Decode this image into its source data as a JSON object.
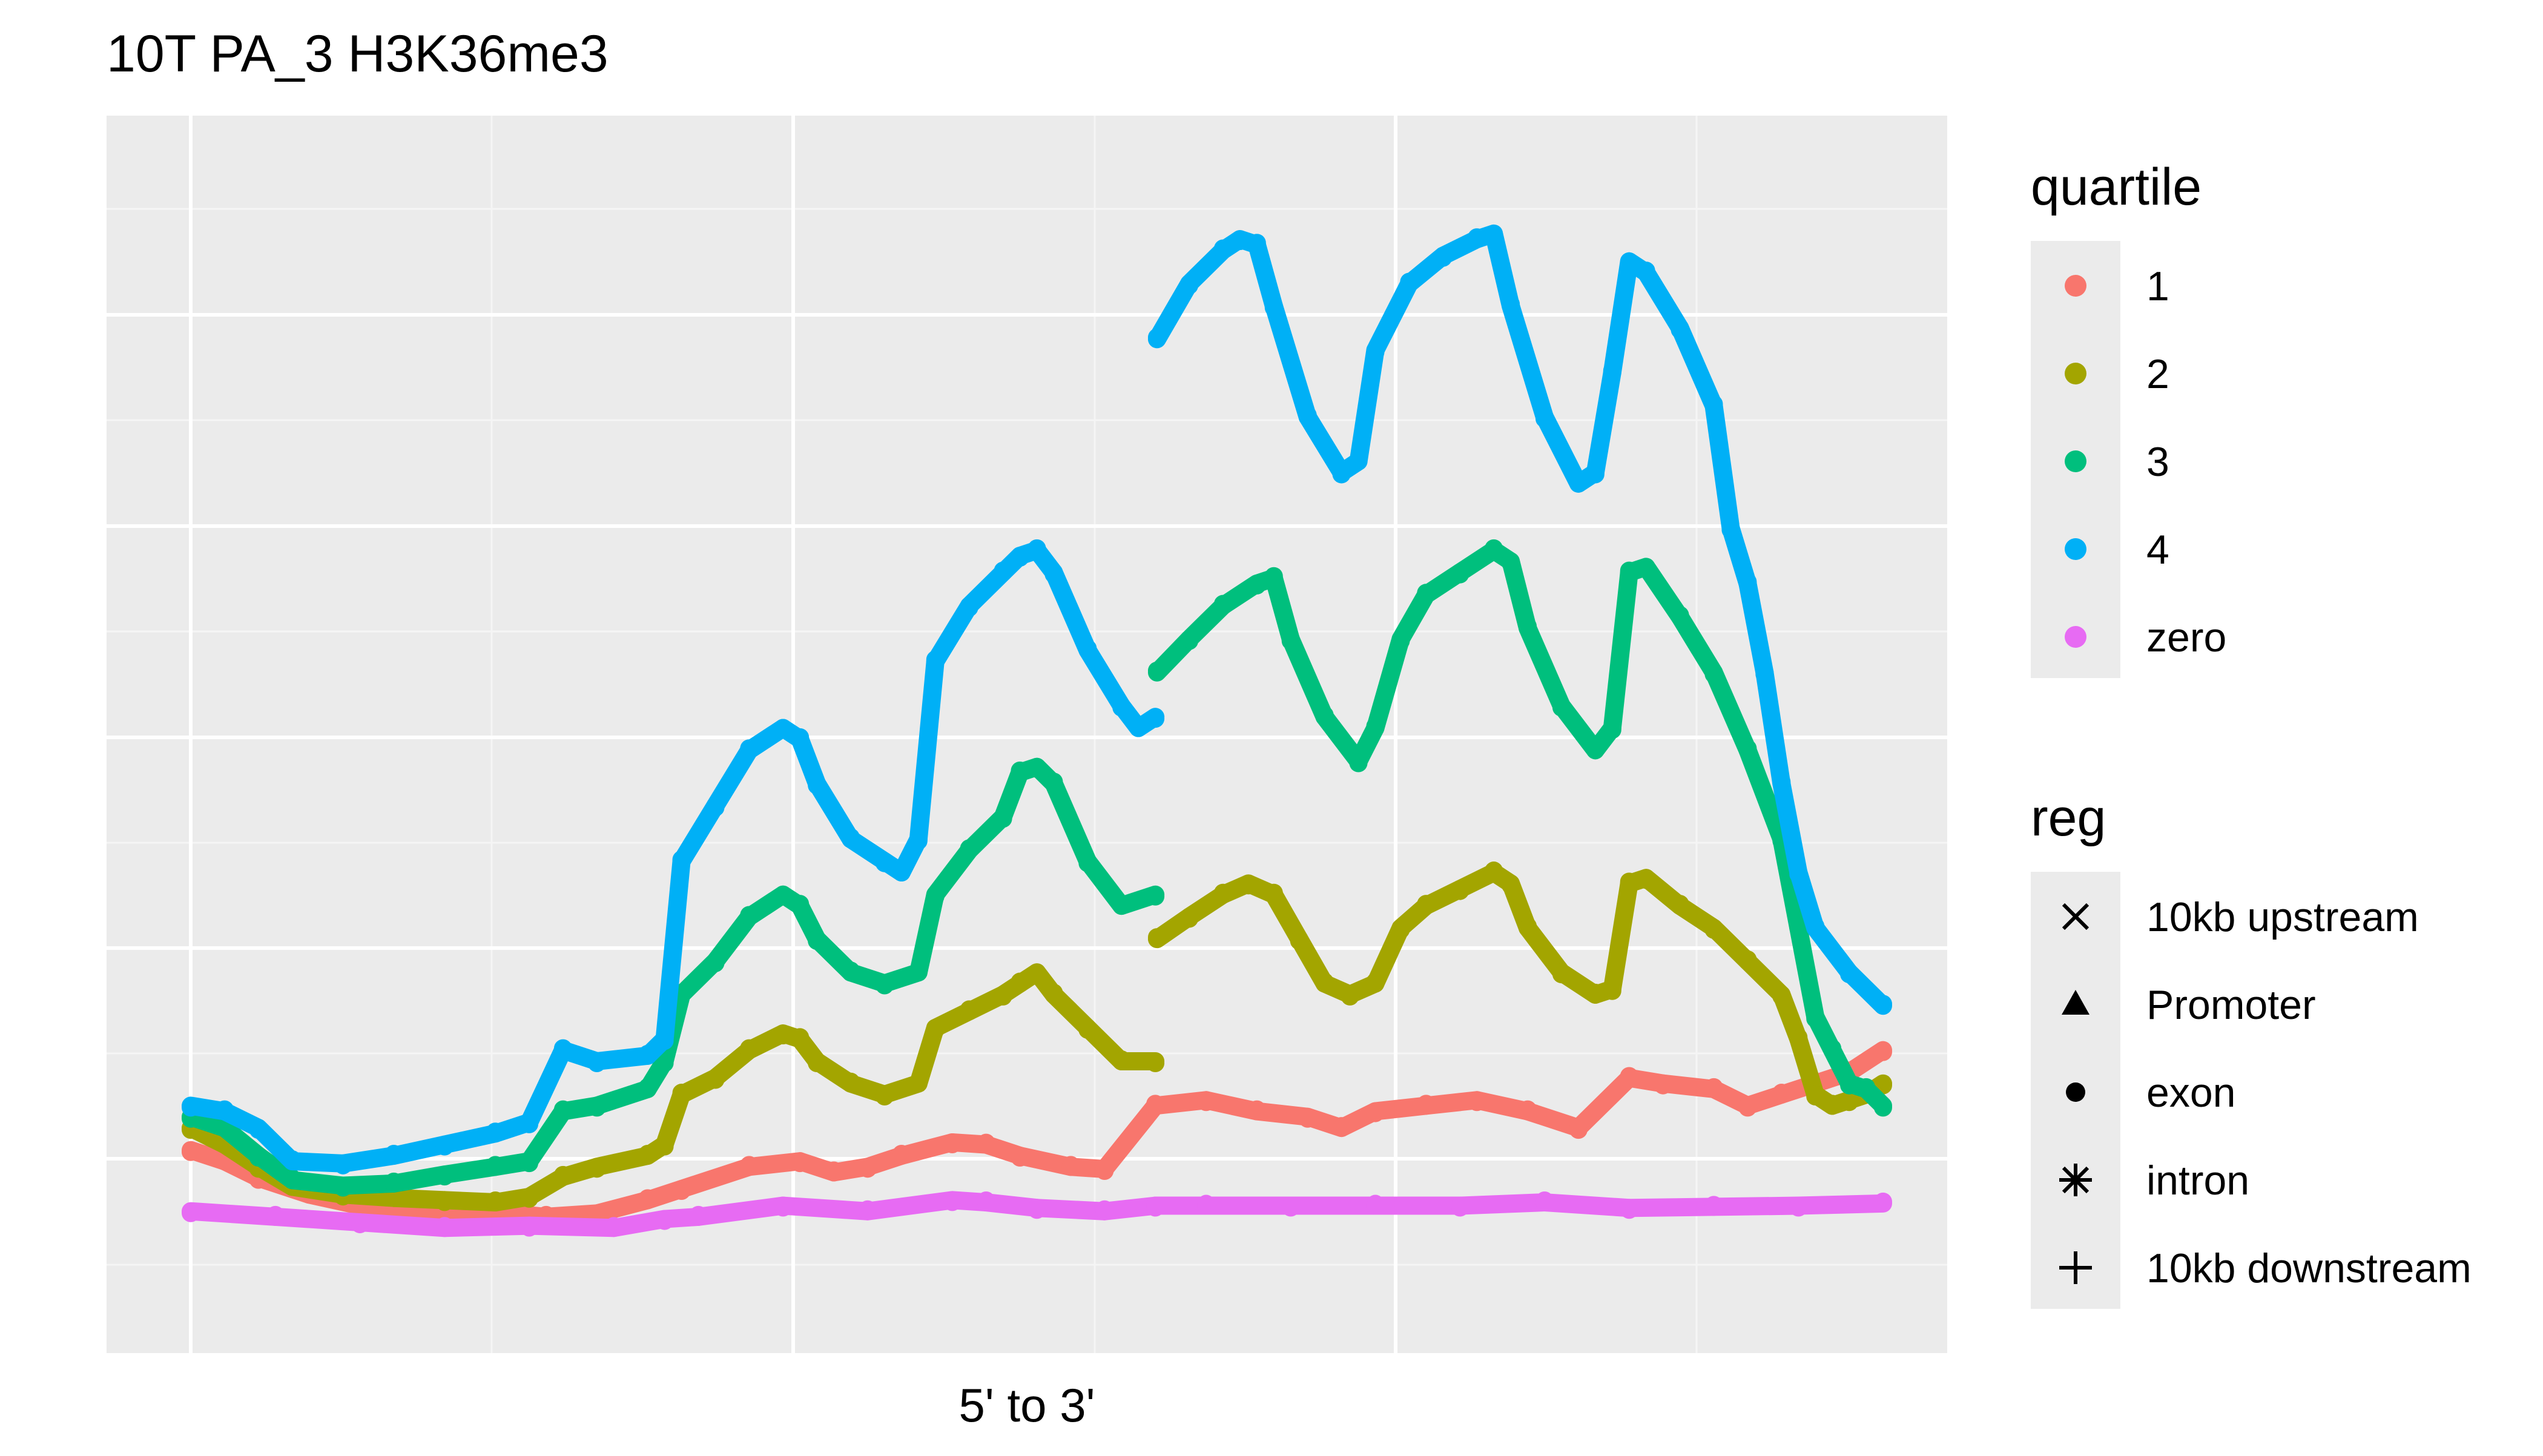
{
  "chart_data": {
    "type": "scatter",
    "title": "10T PA_3 H3K36me3",
    "xlabel": "5' to 3'",
    "ylabel": "",
    "xlim": [
      0,
      100
    ],
    "ylim": [
      0,
      100
    ],
    "grid": true,
    "legend_placement": "right",
    "legends": [
      {
        "title": "quartile",
        "entries": [
          {
            "label": "1",
            "color": "#F8766D"
          },
          {
            "label": "2",
            "color": "#A3A500"
          },
          {
            "label": "3",
            "color": "#00BF7D"
          },
          {
            "label": "4",
            "color": "#00B0F6"
          },
          {
            "label": "zero",
            "color": "#E76BF3"
          }
        ]
      },
      {
        "title": "reg",
        "entries": [
          {
            "label": "10kb upstream",
            "shape": "x"
          },
          {
            "label": "Promoter",
            "shape": "triangle"
          },
          {
            "label": "exon",
            "shape": "circle"
          },
          {
            "label": "intron",
            "shape": "asterisk"
          },
          {
            "label": "10kb downstream",
            "shape": "plus"
          }
        ]
      }
    ],
    "series": [
      {
        "name": "1",
        "color": "#F8766D",
        "points": [
          [
            0,
            12
          ],
          [
            2,
            11
          ],
          [
            4,
            9.5
          ],
          [
            7,
            8
          ],
          [
            10,
            7
          ],
          [
            14,
            6.6
          ],
          [
            18,
            6.4
          ],
          [
            21,
            6
          ],
          [
            24,
            6.3
          ],
          [
            27,
            7.5
          ],
          [
            29,
            8.5
          ],
          [
            33,
            10.5
          ],
          [
            36,
            11
          ],
          [
            38,
            10
          ],
          [
            40,
            10.5
          ],
          [
            42,
            11.5
          ],
          [
            45,
            12.7
          ],
          [
            47,
            12.5
          ],
          [
            49,
            11.5
          ],
          [
            52,
            10.5
          ],
          [
            54,
            10.3
          ],
          [
            57,
            16
          ],
          [
            60,
            16.5
          ],
          [
            63,
            15.5
          ],
          [
            66,
            15
          ],
          [
            68,
            14
          ],
          [
            70,
            15.5
          ],
          [
            73,
            16
          ],
          [
            76,
            16.5
          ],
          [
            79,
            15.5
          ],
          [
            82,
            14
          ],
          [
            85,
            18.5
          ],
          [
            87,
            18
          ],
          [
            90,
            17.5
          ],
          [
            92,
            16
          ],
          [
            94,
            17
          ],
          [
            96,
            18
          ],
          [
            98,
            19
          ],
          [
            100,
            21
          ]
        ]
      },
      {
        "name": "2",
        "color": "#A3A500",
        "points": [
          [
            0,
            14
          ],
          [
            2,
            12.5
          ],
          [
            4,
            10.5
          ],
          [
            6,
            8.7
          ],
          [
            9,
            8
          ],
          [
            12,
            7.7
          ],
          [
            15,
            7.5
          ],
          [
            18,
            7.3
          ],
          [
            20,
            7.8
          ],
          [
            22,
            9.6
          ],
          [
            24,
            10.5
          ],
          [
            27,
            11.5
          ],
          [
            28,
            12.5
          ],
          [
            29,
            17
          ],
          [
            31,
            18.5
          ],
          [
            33,
            21
          ],
          [
            35,
            22.5
          ],
          [
            36,
            22
          ],
          [
            37,
            20
          ],
          [
            39,
            18
          ],
          [
            41,
            17
          ],
          [
            43,
            18
          ],
          [
            44,
            23
          ],
          [
            46,
            24.5
          ],
          [
            48,
            26
          ],
          [
            49,
            27
          ],
          [
            50,
            28
          ],
          [
            51,
            26
          ],
          [
            53,
            23
          ],
          [
            55,
            20
          ],
          [
            57,
            20
          ],
          [
            57.1,
            31
          ],
          [
            59,
            33
          ],
          [
            61,
            35
          ],
          [
            62.5,
            36
          ],
          [
            64,
            35
          ],
          [
            65.5,
            31
          ],
          [
            67,
            27
          ],
          [
            68.5,
            26
          ],
          [
            70,
            27
          ],
          [
            71.5,
            32
          ],
          [
            73,
            34
          ],
          [
            75,
            35.5
          ],
          [
            77,
            37
          ],
          [
            78,
            36
          ],
          [
            79,
            32
          ],
          [
            81,
            28
          ],
          [
            83,
            26
          ],
          [
            84,
            26.5
          ],
          [
            85,
            36
          ],
          [
            86,
            36.5
          ],
          [
            88,
            34
          ],
          [
            90,
            32
          ],
          [
            92,
            29
          ],
          [
            94,
            26
          ],
          [
            95,
            22
          ],
          [
            96,
            17
          ],
          [
            97,
            16
          ],
          [
            98,
            16.5
          ],
          [
            99,
            17
          ],
          [
            100,
            18
          ]
        ]
      },
      {
        "name": "3",
        "color": "#00BF7D",
        "points": [
          [
            0,
            15
          ],
          [
            2,
            14
          ],
          [
            4,
            11.5
          ],
          [
            6,
            9.3
          ],
          [
            9,
            8.8
          ],
          [
            12,
            9
          ],
          [
            15,
            9.8
          ],
          [
            18,
            10.5
          ],
          [
            20,
            11
          ],
          [
            22,
            15.5
          ],
          [
            24,
            16
          ],
          [
            27,
            17.5
          ],
          [
            28,
            20
          ],
          [
            29,
            26
          ],
          [
            31,
            29
          ],
          [
            33,
            33
          ],
          [
            35,
            35
          ],
          [
            36,
            34
          ],
          [
            37,
            31
          ],
          [
            39,
            28
          ],
          [
            41,
            27
          ],
          [
            43,
            28
          ],
          [
            44,
            35
          ],
          [
            46,
            39
          ],
          [
            48,
            42
          ],
          [
            49,
            46
          ],
          [
            50,
            46.5
          ],
          [
            51,
            45
          ],
          [
            53,
            38
          ],
          [
            55,
            34
          ],
          [
            57,
            35
          ],
          [
            57.1,
            55
          ],
          [
            59,
            58
          ],
          [
            61,
            61
          ],
          [
            63,
            63
          ],
          [
            64,
            63.5
          ],
          [
            65,
            58
          ],
          [
            67,
            51
          ],
          [
            69,
            47
          ],
          [
            70,
            50
          ],
          [
            71.5,
            58
          ],
          [
            73,
            62
          ],
          [
            75,
            64
          ],
          [
            77,
            66
          ],
          [
            78,
            65
          ],
          [
            79,
            59
          ],
          [
            81,
            52
          ],
          [
            83,
            48
          ],
          [
            84,
            50
          ],
          [
            85,
            64
          ],
          [
            86,
            64.5
          ],
          [
            88,
            60
          ],
          [
            90,
            55
          ],
          [
            92,
            48
          ],
          [
            94,
            40
          ],
          [
            95,
            32
          ],
          [
            96,
            24
          ],
          [
            97,
            21
          ],
          [
            98,
            18
          ],
          [
            99,
            17.5
          ],
          [
            100,
            16
          ]
        ]
      },
      {
        "name": "4",
        "color": "#00B0F6",
        "points": [
          [
            0,
            16
          ],
          [
            2,
            15.5
          ],
          [
            4,
            14
          ],
          [
            6,
            11
          ],
          [
            9,
            10.8
          ],
          [
            12,
            11.5
          ],
          [
            15,
            12.5
          ],
          [
            18,
            13.5
          ],
          [
            20,
            14.5
          ],
          [
            22,
            21
          ],
          [
            24,
            20
          ],
          [
            27,
            20.5
          ],
          [
            28,
            22
          ],
          [
            29,
            38
          ],
          [
            31,
            43
          ],
          [
            33,
            48
          ],
          [
            35,
            50
          ],
          [
            36,
            49
          ],
          [
            37,
            45
          ],
          [
            39,
            40
          ],
          [
            41,
            38
          ],
          [
            42,
            37
          ],
          [
            43,
            40
          ],
          [
            44,
            56
          ],
          [
            46,
            61
          ],
          [
            48,
            64
          ],
          [
            49,
            65.5
          ],
          [
            50,
            66
          ],
          [
            51,
            64
          ],
          [
            53,
            57
          ],
          [
            55,
            52
          ],
          [
            56,
            50
          ],
          [
            57,
            51
          ],
          [
            57.1,
            85
          ],
          [
            59,
            90
          ],
          [
            61,
            93
          ],
          [
            62,
            94
          ],
          [
            63,
            93.5
          ],
          [
            64,
            88
          ],
          [
            66,
            78
          ],
          [
            68,
            73
          ],
          [
            69,
            74
          ],
          [
            70,
            84
          ],
          [
            72,
            90
          ],
          [
            74,
            92.5
          ],
          [
            76,
            94
          ],
          [
            77,
            94.5
          ],
          [
            78,
            88
          ],
          [
            80,
            78
          ],
          [
            82,
            72
          ],
          [
            83,
            73
          ],
          [
            84,
            82
          ],
          [
            85,
            92
          ],
          [
            86,
            91
          ],
          [
            88,
            86
          ],
          [
            90,
            79
          ],
          [
            91,
            68
          ],
          [
            92,
            63
          ],
          [
            93,
            55
          ],
          [
            94,
            45
          ],
          [
            95,
            37
          ],
          [
            96,
            32
          ],
          [
            98,
            28
          ],
          [
            100,
            25
          ]
        ]
      },
      {
        "name": "zero",
        "color": "#E76BF3",
        "points": [
          [
            0,
            6.5
          ],
          [
            5,
            6
          ],
          [
            10,
            5.5
          ],
          [
            15,
            5
          ],
          [
            20,
            5.2
          ],
          [
            25,
            5
          ],
          [
            28,
            5.8
          ],
          [
            30,
            6
          ],
          [
            35,
            7
          ],
          [
            40,
            6.5
          ],
          [
            45,
            7.5
          ],
          [
            47,
            7.3
          ],
          [
            50,
            6.8
          ],
          [
            54,
            6.5
          ],
          [
            57,
            7
          ],
          [
            60,
            7
          ],
          [
            65,
            7
          ],
          [
            70,
            7
          ],
          [
            75,
            7
          ],
          [
            80,
            7.3
          ],
          [
            85,
            6.8
          ],
          [
            90,
            6.9
          ],
          [
            95,
            7
          ],
          [
            100,
            7.2
          ]
        ]
      }
    ]
  }
}
